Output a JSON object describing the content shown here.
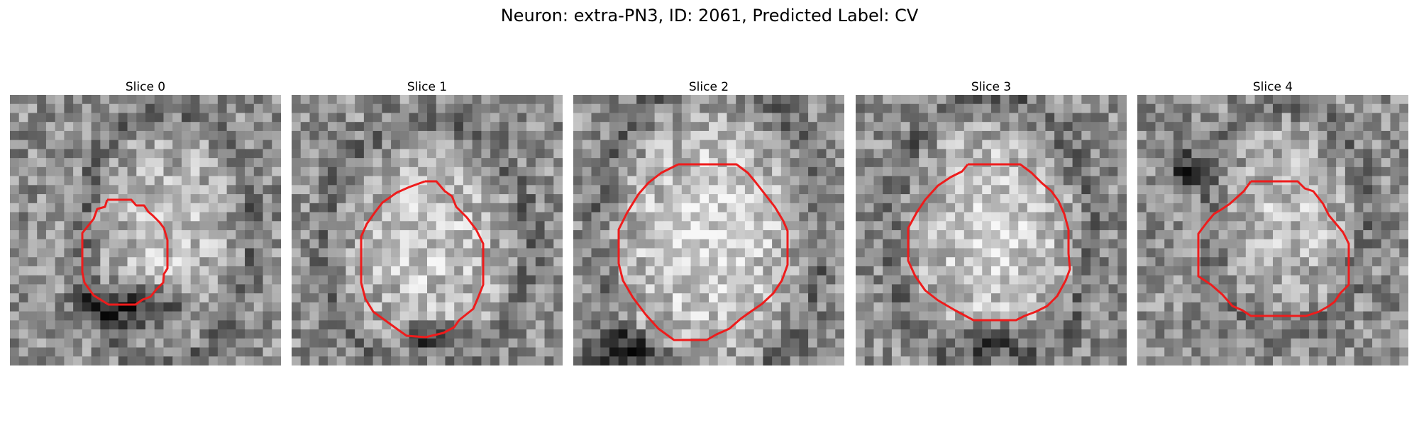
{
  "figure": {
    "title": "Neuron: extra-PN3, ID: 2061, Predicted Label: CV"
  },
  "colors": {
    "background": "#ffffff",
    "contour": "#ee1c1c"
  },
  "panels": [
    {
      "title": "Slice 0",
      "image": "grayscale-noise-microscopy-patch",
      "overlay": "red-contour-outline",
      "seed": 11,
      "bright": [
        0.58,
        0.52,
        0.3,
        0.45,
        0.35
      ],
      "dark": [
        0.45,
        0.78,
        0.3,
        0.12,
        0.55
      ]
    },
    {
      "title": "Slice 1",
      "image": "grayscale-noise-microscopy-patch",
      "overlay": "red-contour-outline",
      "seed": 27,
      "bright": [
        0.5,
        0.56,
        0.36,
        0.45,
        0.4
      ],
      "dark": [
        0.52,
        0.9,
        0.18,
        0.08,
        0.5
      ]
    },
    {
      "title": "Slice 2",
      "image": "grayscale-noise-microscopy-patch",
      "overlay": "red-contour-outline",
      "seed": 43,
      "bright": [
        0.5,
        0.52,
        0.4,
        0.55,
        0.5
      ],
      "dark": [
        0.18,
        0.95,
        0.22,
        0.1,
        0.45
      ]
    },
    {
      "title": "Slice 3",
      "image": "grayscale-noise-microscopy-patch",
      "overlay": "red-contour-outline",
      "seed": 59,
      "bright": [
        0.5,
        0.52,
        0.35,
        0.5,
        0.48
      ],
      "dark": [
        0.5,
        0.92,
        0.2,
        0.1,
        0.48
      ]
    },
    {
      "title": "Slice 4",
      "image": "grayscale-noise-microscopy-patch",
      "overlay": "red-contour-outline",
      "seed": 71,
      "bright": [
        0.55,
        0.45,
        0.28,
        0.4,
        0.34
      ],
      "dark": [
        0.18,
        0.28,
        0.1,
        0.12,
        0.4
      ]
    }
  ]
}
